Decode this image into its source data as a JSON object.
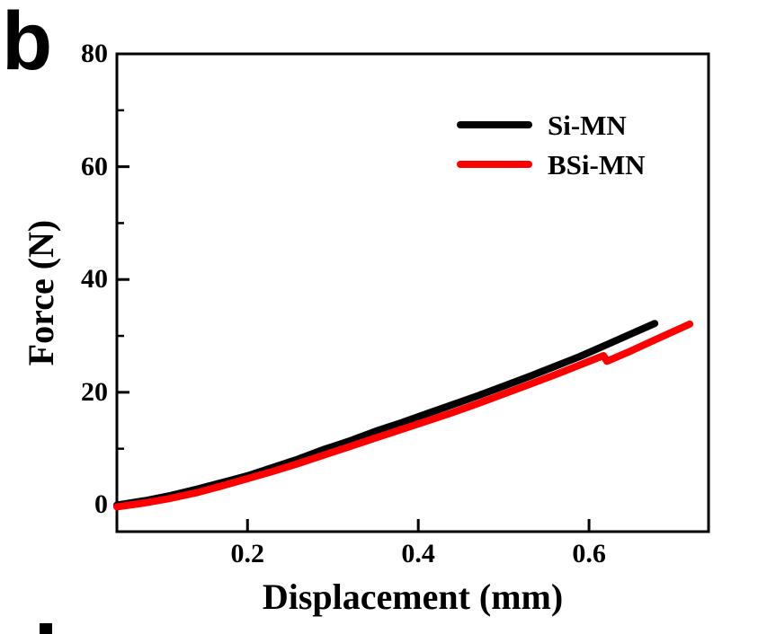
{
  "panel_label": "b",
  "colors": {
    "axis": "#000000",
    "background": "#ffffff"
  },
  "chart_data": {
    "type": "line",
    "title": "",
    "xlabel": "Displacement (mm)",
    "ylabel": "Force (N)",
    "xlim": [
      0.047,
      0.74
    ],
    "ylim": [
      -4.7,
      80
    ],
    "grid": false,
    "legend_position": "upper-right-inside",
    "x_ticks": [
      {
        "value": 0.2,
        "label": "0.2"
      },
      {
        "value": 0.4,
        "label": "0.4"
      },
      {
        "value": 0.6,
        "label": "0.6"
      }
    ],
    "y_ticks": [
      {
        "value": 0,
        "label": "0"
      },
      {
        "value": 20,
        "label": "20"
      },
      {
        "value": 40,
        "label": "40"
      },
      {
        "value": 60,
        "label": "60"
      },
      {
        "value": 80,
        "label": "80"
      }
    ],
    "y_minor_ticks": [
      10,
      30,
      50,
      70
    ],
    "series": [
      {
        "name": "Si-MN",
        "color": "#000000",
        "points": [
          [
            0.047,
            0.0
          ],
          [
            0.08,
            0.8
          ],
          [
            0.11,
            1.7
          ],
          [
            0.14,
            2.8
          ],
          [
            0.17,
            4.0
          ],
          [
            0.2,
            5.2
          ],
          [
            0.23,
            6.7
          ],
          [
            0.26,
            8.2
          ],
          [
            0.29,
            9.9
          ],
          [
            0.32,
            11.4
          ],
          [
            0.35,
            13.1
          ],
          [
            0.38,
            14.6
          ],
          [
            0.41,
            16.2
          ],
          [
            0.44,
            17.8
          ],
          [
            0.47,
            19.4
          ],
          [
            0.5,
            21.1
          ],
          [
            0.53,
            22.8
          ],
          [
            0.56,
            24.6
          ],
          [
            0.59,
            26.4
          ],
          [
            0.62,
            28.4
          ],
          [
            0.65,
            30.4
          ],
          [
            0.677,
            32.2
          ]
        ]
      },
      {
        "name": "BSi-MN",
        "color": "#ff0000",
        "points": [
          [
            0.047,
            -0.3
          ],
          [
            0.08,
            0.4
          ],
          [
            0.11,
            1.2
          ],
          [
            0.14,
            2.2
          ],
          [
            0.17,
            3.4
          ],
          [
            0.2,
            4.7
          ],
          [
            0.23,
            6.0
          ],
          [
            0.26,
            7.4
          ],
          [
            0.29,
            8.9
          ],
          [
            0.32,
            10.4
          ],
          [
            0.35,
            11.9
          ],
          [
            0.38,
            13.4
          ],
          [
            0.41,
            14.9
          ],
          [
            0.44,
            16.4
          ],
          [
            0.47,
            18.0
          ],
          [
            0.5,
            19.7
          ],
          [
            0.53,
            21.4
          ],
          [
            0.56,
            23.1
          ],
          [
            0.59,
            24.9
          ],
          [
            0.617,
            26.5
          ],
          [
            0.621,
            25.5
          ],
          [
            0.65,
            27.4
          ],
          [
            0.68,
            29.5
          ],
          [
            0.718,
            32.1
          ]
        ]
      }
    ]
  }
}
